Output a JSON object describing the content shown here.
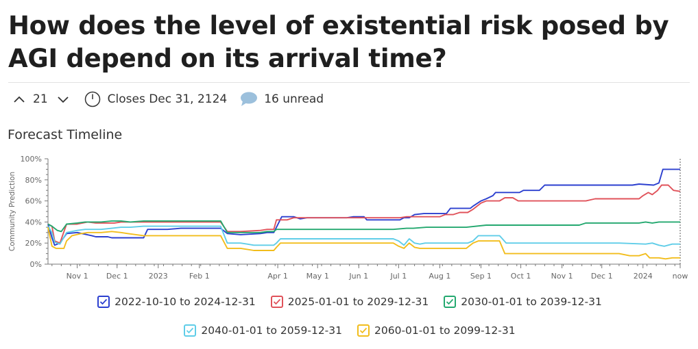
{
  "title": "How does the level of existential risk posed by AGI depend on its arrival time?",
  "meta": {
    "votes": "21",
    "closes": "Closes Dec 31, 2124",
    "comments": "16 unread"
  },
  "section_title": "Forecast Timeline",
  "colors": {
    "s1": "#2b3fcf",
    "s2": "#e0525a",
    "s3": "#23a86f",
    "s4": "#5fcde8",
    "s5": "#f2bd1c",
    "axis": "#777777",
    "grid": "#c9c9c9"
  },
  "chart_data": {
    "type": "line",
    "title": "Forecast Timeline",
    "xlabel": "",
    "ylabel": "Community Prediction",
    "ylim": [
      0,
      100
    ],
    "yticks": [
      "0%",
      "20%",
      "40%",
      "60%",
      "80%",
      "100%"
    ],
    "xtick_labels": [
      "Nov 1",
      "Dec 1",
      "2023",
      "Feb 1",
      "Apr 1",
      "May 1",
      "Jun 1",
      "Jul 1",
      "Aug 1",
      "Sep 1",
      "Oct 1",
      "Nov 1",
      "Dec 1",
      "2024",
      "now"
    ],
    "xtick_days": [
      22,
      52,
      83,
      114,
      173,
      203,
      234,
      264,
      295,
      326,
      356,
      387,
      417,
      448,
      476
    ],
    "x_range_days": [
      0,
      476
    ],
    "x_description": "days since 2022-10-10",
    "series": [
      {
        "name": "2022-10-10 to 2024-12-31",
        "color": "#2b3fcf",
        "points": [
          [
            0,
            38
          ],
          [
            3,
            25
          ],
          [
            5,
            18
          ],
          [
            9,
            20
          ],
          [
            14,
            29
          ],
          [
            22,
            30
          ],
          [
            33,
            27
          ],
          [
            36,
            26
          ],
          [
            45,
            26
          ],
          [
            48,
            25
          ],
          [
            72,
            25
          ],
          [
            75,
            33
          ],
          [
            90,
            33
          ],
          [
            100,
            34
          ],
          [
            130,
            34
          ],
          [
            135,
            29
          ],
          [
            145,
            28
          ],
          [
            160,
            29
          ],
          [
            165,
            30
          ],
          [
            170,
            30
          ],
          [
            172,
            35
          ],
          [
            176,
            45
          ],
          [
            185,
            45
          ],
          [
            190,
            43
          ],
          [
            195,
            44
          ],
          [
            225,
            44
          ],
          [
            230,
            45
          ],
          [
            238,
            45
          ],
          [
            240,
            42
          ],
          [
            265,
            42
          ],
          [
            268,
            44
          ],
          [
            272,
            44
          ],
          [
            276,
            47
          ],
          [
            283,
            48
          ],
          [
            300,
            48
          ],
          [
            303,
            53
          ],
          [
            318,
            53
          ],
          [
            320,
            55
          ],
          [
            326,
            60
          ],
          [
            330,
            62
          ],
          [
            335,
            65
          ],
          [
            337,
            68
          ],
          [
            355,
            68
          ],
          [
            358,
            70
          ],
          [
            370,
            70
          ],
          [
            374,
            75
          ],
          [
            400,
            75
          ],
          [
            440,
            75
          ],
          [
            445,
            76
          ],
          [
            456,
            75
          ],
          [
            460,
            77
          ],
          [
            463,
            90
          ],
          [
            476,
            90
          ]
        ]
      },
      {
        "name": "2025-01-01 to 2029-12-31",
        "color": "#e0525a",
        "points": [
          [
            0,
            38
          ],
          [
            3,
            36
          ],
          [
            5,
            22
          ],
          [
            9,
            20
          ],
          [
            14,
            38
          ],
          [
            22,
            38
          ],
          [
            30,
            40
          ],
          [
            36,
            39
          ],
          [
            50,
            39
          ],
          [
            55,
            40
          ],
          [
            100,
            40
          ],
          [
            130,
            40
          ],
          [
            135,
            31
          ],
          [
            145,
            31
          ],
          [
            160,
            32
          ],
          [
            165,
            33
          ],
          [
            170,
            33
          ],
          [
            172,
            42
          ],
          [
            180,
            42
          ],
          [
            185,
            44
          ],
          [
            200,
            44
          ],
          [
            230,
            44
          ],
          [
            255,
            44
          ],
          [
            265,
            44
          ],
          [
            270,
            45
          ],
          [
            295,
            45
          ],
          [
            299,
            47
          ],
          [
            305,
            47
          ],
          [
            310,
            49
          ],
          [
            316,
            49
          ],
          [
            320,
            52
          ],
          [
            326,
            58
          ],
          [
            330,
            60
          ],
          [
            340,
            60
          ],
          [
            344,
            63
          ],
          [
            350,
            63
          ],
          [
            354,
            60
          ],
          [
            405,
            60
          ],
          [
            412,
            62
          ],
          [
            425,
            62
          ],
          [
            445,
            62
          ],
          [
            448,
            65
          ],
          [
            452,
            68
          ],
          [
            455,
            66
          ],
          [
            459,
            70
          ],
          [
            462,
            75
          ],
          [
            467,
            75
          ],
          [
            471,
            70
          ],
          [
            476,
            69
          ]
        ]
      },
      {
        "name": "2030-01-01 to 2039-12-31",
        "color": "#23a86f",
        "points": [
          [
            0,
            38
          ],
          [
            3,
            36
          ],
          [
            7,
            32
          ],
          [
            10,
            31
          ],
          [
            14,
            38
          ],
          [
            22,
            39
          ],
          [
            28,
            40
          ],
          [
            40,
            40
          ],
          [
            48,
            41
          ],
          [
            55,
            41
          ],
          [
            62,
            40
          ],
          [
            72,
            41
          ],
          [
            100,
            41
          ],
          [
            130,
            41
          ],
          [
            135,
            30
          ],
          [
            145,
            30
          ],
          [
            160,
            30
          ],
          [
            165,
            31
          ],
          [
            170,
            31
          ],
          [
            172,
            33
          ],
          [
            200,
            33
          ],
          [
            260,
            33
          ],
          [
            270,
            34
          ],
          [
            275,
            34
          ],
          [
            285,
            35
          ],
          [
            315,
            35
          ],
          [
            330,
            37
          ],
          [
            350,
            37
          ],
          [
            370,
            37
          ],
          [
            400,
            37
          ],
          [
            405,
            39
          ],
          [
            420,
            39
          ],
          [
            445,
            39
          ],
          [
            450,
            40
          ],
          [
            455,
            39
          ],
          [
            460,
            40
          ],
          [
            476,
            40
          ]
        ]
      },
      {
        "name": "2040-01-01 to 2059-12-31",
        "color": "#5fcde8",
        "points": [
          [
            0,
            36
          ],
          [
            3,
            30
          ],
          [
            5,
            21
          ],
          [
            9,
            19
          ],
          [
            14,
            30
          ],
          [
            22,
            32
          ],
          [
            28,
            33
          ],
          [
            40,
            33
          ],
          [
            48,
            34
          ],
          [
            55,
            35
          ],
          [
            62,
            35
          ],
          [
            72,
            36
          ],
          [
            100,
            36
          ],
          [
            130,
            36
          ],
          [
            135,
            20
          ],
          [
            145,
            20
          ],
          [
            150,
            19
          ],
          [
            155,
            18
          ],
          [
            170,
            18
          ],
          [
            172,
            20
          ],
          [
            175,
            24
          ],
          [
            200,
            24
          ],
          [
            260,
            24
          ],
          [
            264,
            22
          ],
          [
            268,
            18
          ],
          [
            272,
            24
          ],
          [
            276,
            20
          ],
          [
            280,
            19
          ],
          [
            284,
            20
          ],
          [
            316,
            20
          ],
          [
            320,
            22
          ],
          [
            324,
            27
          ],
          [
            340,
            27
          ],
          [
            345,
            20
          ],
          [
            400,
            20
          ],
          [
            430,
            20
          ],
          [
            450,
            19
          ],
          [
            455,
            20
          ],
          [
            460,
            18
          ],
          [
            464,
            17
          ],
          [
            470,
            19
          ],
          [
            476,
            19
          ]
        ]
      },
      {
        "name": "2060-01-01 to 2099-12-31",
        "color": "#f2bd1c",
        "points": [
          [
            0,
            35
          ],
          [
            3,
            17
          ],
          [
            6,
            15
          ],
          [
            12,
            15
          ],
          [
            14,
            22
          ],
          [
            18,
            27
          ],
          [
            25,
            29
          ],
          [
            30,
            30
          ],
          [
            40,
            30
          ],
          [
            48,
            31
          ],
          [
            55,
            30
          ],
          [
            60,
            29
          ],
          [
            72,
            27
          ],
          [
            100,
            27
          ],
          [
            130,
            27
          ],
          [
            135,
            15
          ],
          [
            145,
            15
          ],
          [
            150,
            14
          ],
          [
            155,
            13
          ],
          [
            170,
            13
          ],
          [
            172,
            16
          ],
          [
            175,
            20
          ],
          [
            200,
            20
          ],
          [
            260,
            20
          ],
          [
            264,
            17
          ],
          [
            268,
            15
          ],
          [
            272,
            20
          ],
          [
            276,
            16
          ],
          [
            280,
            15
          ],
          [
            315,
            15
          ],
          [
            320,
            20
          ],
          [
            324,
            22
          ],
          [
            340,
            22
          ],
          [
            344,
            10
          ],
          [
            400,
            10
          ],
          [
            430,
            10
          ],
          [
            438,
            8
          ],
          [
            445,
            8
          ],
          [
            450,
            10
          ],
          [
            453,
            6
          ],
          [
            460,
            6
          ],
          [
            465,
            5
          ],
          [
            470,
            6
          ],
          [
            476,
            6
          ]
        ]
      }
    ]
  }
}
